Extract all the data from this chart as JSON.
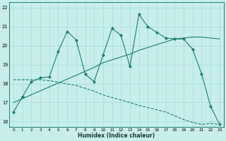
{
  "xlabel": "Humidex (Indice chaleur)",
  "bg_color": "#c8eeec",
  "grid_color": "#a8deda",
  "line_color": "#1a7a6e",
  "xlim": [
    -0.5,
    23.5
  ],
  "ylim": [
    15.7,
    22.3
  ],
  "yticks": [
    16,
    17,
    18,
    19,
    20,
    21,
    22
  ],
  "xticks": [
    0,
    1,
    2,
    3,
    4,
    5,
    6,
    7,
    8,
    9,
    10,
    11,
    12,
    13,
    14,
    15,
    16,
    17,
    18,
    19,
    20,
    21,
    22,
    23
  ],
  "line1_x": [
    0,
    1,
    2,
    3,
    4,
    5,
    6,
    7,
    8,
    9,
    10,
    11,
    12,
    13,
    14,
    15,
    16,
    17,
    18,
    19,
    20,
    21,
    22,
    23
  ],
  "line1_y": [
    16.5,
    17.3,
    18.1,
    18.3,
    18.35,
    19.7,
    20.75,
    20.3,
    18.5,
    18.1,
    19.5,
    20.9,
    20.55,
    18.9,
    21.65,
    21.0,
    20.7,
    20.4,
    20.35,
    20.35,
    19.8,
    18.5,
    16.8,
    15.85
  ],
  "line2_x": [
    0,
    9,
    10,
    13,
    14,
    18,
    19,
    20,
    21,
    22,
    23
  ],
  "line2_y": [
    17.0,
    18.85,
    19.1,
    19.55,
    19.75,
    20.35,
    20.4,
    20.45,
    20.45,
    20.4,
    20.35
  ],
  "line3_x": [
    0,
    3,
    4,
    7,
    8,
    9,
    10,
    13,
    14,
    17,
    18,
    19,
    20,
    21,
    22,
    23
  ],
  "line3_y": [
    18.2,
    18.2,
    18.15,
    17.9,
    17.75,
    17.6,
    17.4,
    17.0,
    16.85,
    16.5,
    16.3,
    16.1,
    15.95,
    15.85,
    15.9,
    15.85
  ]
}
